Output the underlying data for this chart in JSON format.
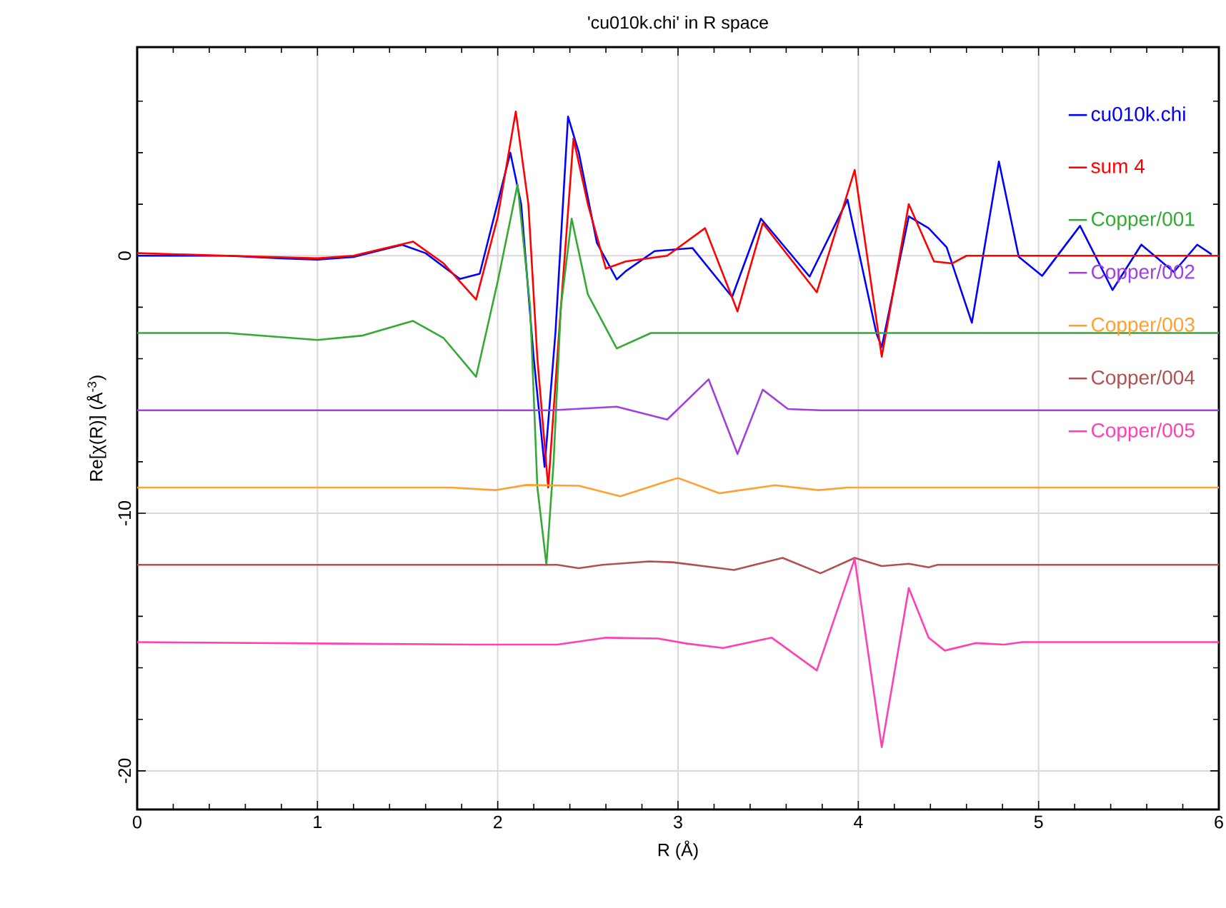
{
  "chart_data": {
    "type": "line",
    "title": "'cu010k.chi' in R space",
    "xlabel": "R (Å)",
    "ylabel": "Re[χ(R)] (Å$^{-3}$)",
    "xlim": [
      0,
      6
    ],
    "ylim": [
      -21.5,
      8.1
    ],
    "xticks": [
      0,
      {
        "value": 0.2,
        "label": null
      },
      {
        "value": 0.4,
        "label": null
      },
      {
        "value": 0.6,
        "label": null
      },
      {
        "value": 0.8,
        "label": null
      },
      1,
      {
        "value": 1.2,
        "label": null
      },
      {
        "value": 1.4,
        "label": null
      },
      {
        "value": 1.6,
        "label": null
      },
      {
        "value": 1.8,
        "label": null
      },
      2,
      {
        "value": 2.2,
        "label": null
      },
      {
        "value": 2.4,
        "label": null
      },
      {
        "value": 2.6,
        "label": null
      },
      {
        "value": 2.8,
        "label": null
      },
      3,
      {
        "value": 3.2,
        "label": null
      },
      {
        "value": 3.4,
        "label": null
      },
      {
        "value": 3.6,
        "label": null
      },
      {
        "value": 3.8,
        "label": null
      },
      4,
      {
        "value": 4.2,
        "label": null
      },
      {
        "value": 4.4,
        "label": null
      },
      {
        "value": 4.6,
        "label": null
      },
      {
        "value": 4.8,
        "label": null
      },
      5,
      {
        "value": 5.2,
        "label": null
      },
      {
        "value": 5.4,
        "label": null
      },
      {
        "value": 5.6,
        "label": null
      },
      {
        "value": 5.8,
        "label": null
      },
      6
    ],
    "yticks": [
      -20,
      {
        "value": -18,
        "label": null
      },
      {
        "value": -16,
        "label": null
      },
      {
        "value": -14,
        "label": null
      },
      {
        "value": -12,
        "label": null
      },
      -10,
      {
        "value": -8,
        "label": null
      },
      {
        "value": -6,
        "label": null
      },
      {
        "value": -4,
        "label": null
      },
      {
        "value": -2,
        "label": null
      },
      0,
      {
        "value": 2,
        "label": null
      },
      {
        "value": 4,
        "label": null
      },
      {
        "value": 6,
        "label": null
      }
    ],
    "grid": true,
    "legend": "top right",
    "line_style": "solid",
    "marker": "none",
    "series": [
      {
        "name": "cu010k.chi",
        "color": "#0000ff",
        "x": [
          0,
          0.5,
          0.8,
          1.0,
          1.2,
          1.47,
          1.6,
          1.79,
          1.9,
          2.07,
          2.13,
          2.2,
          2.26,
          2.32,
          2.39,
          2.45,
          2.55,
          2.66,
          2.71,
          2.87,
          3.08,
          3.3,
          3.46,
          3.73,
          3.94,
          4.1,
          4.13,
          4.28,
          4.39,
          4.49,
          4.63,
          4.78,
          4.89,
          5.02,
          5.23,
          5.41,
          5.57,
          5.75,
          5.88,
          5.96
        ],
        "values": [
          0,
          0,
          -0.1,
          -0.15,
          -0.05,
          0.42,
          0.1,
          -0.9,
          -0.7,
          4.0,
          2.0,
          -4.0,
          -8.2,
          -3.0,
          5.4,
          4.0,
          0.5,
          -0.92,
          -0.6,
          0.18,
          0.3,
          -1.6,
          1.44,
          -0.81,
          2.18,
          -3.0,
          -3.55,
          1.53,
          1.07,
          0.33,
          -2.6,
          3.66,
          -0.04,
          -0.78,
          1.16,
          -1.33,
          0.43,
          -0.63,
          0.43,
          0.05
        ]
      },
      {
        "name": "sum 4",
        "color": "#ff0000",
        "x": [
          0,
          0.5,
          1.0,
          1.2,
          1.53,
          1.7,
          1.88,
          2.0,
          2.1,
          2.17,
          2.22,
          2.28,
          2.34,
          2.42,
          2.5,
          2.6,
          2.71,
          2.94,
          3.15,
          3.33,
          3.47,
          3.77,
          3.98,
          4.13,
          4.28,
          4.42,
          4.52,
          4.6,
          6
        ],
        "values": [
          0.1,
          0,
          -0.1,
          0,
          0.55,
          -0.3,
          -1.7,
          1.5,
          5.6,
          2.0,
          -4.0,
          -9.0,
          -3.0,
          4.55,
          2.0,
          -0.5,
          -0.22,
          0,
          1.07,
          -2.16,
          1.26,
          -1.42,
          3.33,
          -3.92,
          2.0,
          -0.22,
          -0.3,
          0,
          0
        ]
      },
      {
        "name": "Copper/001",
        "color": "#33aa33",
        "x": [
          0,
          0.5,
          1.0,
          1.25,
          1.53,
          1.7,
          1.88,
          2.0,
          2.11,
          2.18,
          2.22,
          2.27,
          2.31,
          2.35,
          2.41,
          2.5,
          2.66,
          2.85,
          6
        ],
        "values": [
          -3.0,
          -3.0,
          -3.27,
          -3.1,
          -2.53,
          -3.2,
          -4.7,
          -1.0,
          2.77,
          -2.0,
          -9.0,
          -12.0,
          -8.0,
          -2.0,
          1.44,
          -1.5,
          -3.6,
          -3.0,
          -3.0
        ]
      },
      {
        "name": "Copper/002",
        "color": "#a040e0",
        "x": [
          0,
          2.3,
          2.66,
          2.94,
          3.17,
          3.33,
          3.47,
          3.61,
          3.79,
          6
        ],
        "values": [
          -6.0,
          -6.0,
          -5.86,
          -6.36,
          -4.8,
          -7.7,
          -5.2,
          -5.95,
          -6.0,
          -6.0
        ]
      },
      {
        "name": "Copper/003",
        "color": "#ffa030",
        "x": [
          0,
          1.74,
          1.99,
          2.16,
          2.45,
          2.68,
          2.92,
          3.0,
          3.23,
          3.54,
          3.78,
          3.94,
          6
        ],
        "values": [
          -9.0,
          -9.0,
          -9.1,
          -8.9,
          -8.93,
          -9.34,
          -8.8,
          -8.63,
          -9.22,
          -8.91,
          -9.1,
          -9.0,
          -9.0
        ]
      },
      {
        "name": "Copper/004",
        "color": "#b05050",
        "x": [
          0,
          2.33,
          2.45,
          2.58,
          2.84,
          2.97,
          3.31,
          3.58,
          3.79,
          3.98,
          4.13,
          4.28,
          4.39,
          4.44,
          6
        ],
        "values": [
          -12.0,
          -12.0,
          -12.13,
          -12.0,
          -11.87,
          -11.9,
          -12.2,
          -11.73,
          -12.33,
          -11.73,
          -12.05,
          -11.96,
          -12.1,
          -12.0,
          -12.0
        ]
      },
      {
        "name": "Copper/005",
        "color": "#ff40b0",
        "x": [
          0,
          1.88,
          2.33,
          2.6,
          2.89,
          3.05,
          3.25,
          3.52,
          3.77,
          3.98,
          4.13,
          4.28,
          4.39,
          4.48,
          4.65,
          4.81,
          4.91,
          6
        ],
        "values": [
          -15.0,
          -15.1,
          -15.1,
          -14.83,
          -14.86,
          -15.06,
          -15.23,
          -14.83,
          -16.1,
          -11.77,
          -19.08,
          -12.9,
          -14.83,
          -15.33,
          -15.04,
          -15.1,
          -15.0,
          -15.0
        ]
      }
    ]
  }
}
